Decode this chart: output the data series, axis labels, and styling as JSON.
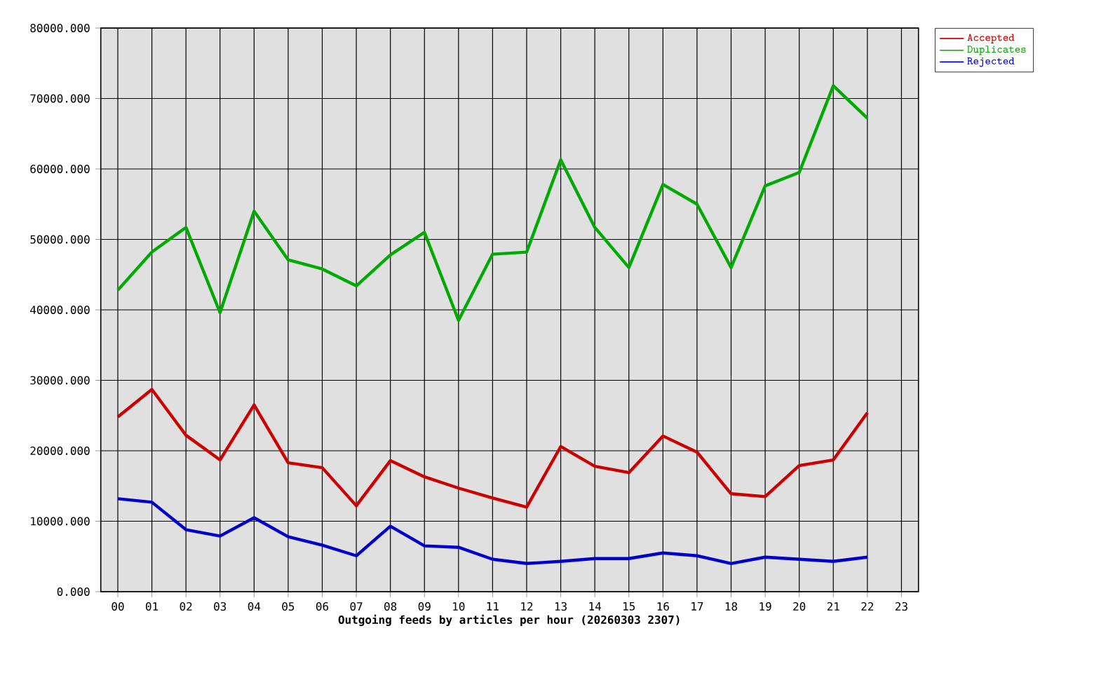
{
  "chart_data": {
    "type": "line",
    "xlabel": "Outgoing feeds by articles per hour (20260303 2307)",
    "categories": [
      "00",
      "01",
      "02",
      "03",
      "04",
      "05",
      "06",
      "07",
      "08",
      "09",
      "10",
      "11",
      "12",
      "13",
      "14",
      "15",
      "16",
      "17",
      "18",
      "19",
      "20",
      "21",
      "22",
      "23"
    ],
    "series": [
      {
        "name": "Accepted",
        "color": "#cc0000",
        "values": [
          24800,
          28700,
          22200,
          18700,
          26500,
          18300,
          17600,
          12200,
          18600,
          16300,
          14700,
          13300,
          12000,
          20600,
          17800,
          16900,
          22100,
          19800,
          13900,
          13500,
          17900,
          18700,
          25400,
          null
        ]
      },
      {
        "name": "Duplicates",
        "color": "#00aa00",
        "values": [
          42800,
          48200,
          51700,
          39600,
          54000,
          47100,
          45800,
          43400,
          47800,
          51000,
          38500,
          47900,
          48200,
          61300,
          51700,
          46000,
          57800,
          55000,
          46000,
          57600,
          59500,
          71800,
          67200,
          null
        ]
      },
      {
        "name": "Rejected",
        "color": "#0000cc",
        "values": [
          13200,
          12700,
          8800,
          7900,
          10500,
          7800,
          6600,
          5100,
          9300,
          6500,
          6300,
          4600,
          4000,
          4300,
          4700,
          4700,
          5500,
          5100,
          4000,
          4900,
          4600,
          4300,
          4900,
          null
        ]
      }
    ],
    "ylim": [
      0,
      80000
    ],
    "yticks": [
      {
        "value": 0,
        "label": "0.000"
      },
      {
        "value": 10000,
        "label": "10000.000"
      },
      {
        "value": 20000,
        "label": "20000.000"
      },
      {
        "value": 30000,
        "label": "30000.000"
      },
      {
        "value": 40000,
        "label": "40000.000"
      },
      {
        "value": 50000,
        "label": "50000.000"
      },
      {
        "value": 60000,
        "label": "60000.000"
      },
      {
        "value": 70000,
        "label": "70000.000"
      },
      {
        "value": 80000,
        "label": "80000.000"
      }
    ],
    "grid": true,
    "legend": "top right"
  }
}
